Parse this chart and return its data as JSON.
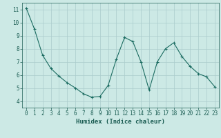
{
  "x": [
    0,
    1,
    2,
    3,
    4,
    5,
    6,
    7,
    8,
    9,
    10,
    11,
    12,
    13,
    14,
    15,
    16,
    17,
    18,
    19,
    20,
    21,
    22,
    23
  ],
  "y": [
    11.1,
    9.5,
    7.5,
    6.5,
    5.9,
    5.4,
    5.0,
    4.55,
    4.3,
    4.35,
    5.2,
    7.2,
    8.85,
    8.55,
    7.0,
    4.85,
    7.0,
    8.0,
    8.45,
    7.4,
    6.65,
    6.1,
    5.85,
    5.1
  ],
  "bg_color": "#cce9e5",
  "grid_color": "#aacccc",
  "line_color": "#1a6b60",
  "marker_color": "#1a6b60",
  "xlabel": "Humidex (Indice chaleur)",
  "ylim": [
    3.5,
    11.5
  ],
  "xlim": [
    -0.5,
    23.5
  ],
  "yticks": [
    4,
    5,
    6,
    7,
    8,
    9,
    10,
    11
  ],
  "xticks": [
    0,
    1,
    2,
    3,
    4,
    5,
    6,
    7,
    8,
    9,
    10,
    11,
    12,
    13,
    14,
    15,
    16,
    17,
    18,
    19,
    20,
    21,
    22,
    23
  ],
  "title_color": "#1a5c52",
  "font_size_xlabel": 6.5,
  "font_size_ticks": 5.5
}
